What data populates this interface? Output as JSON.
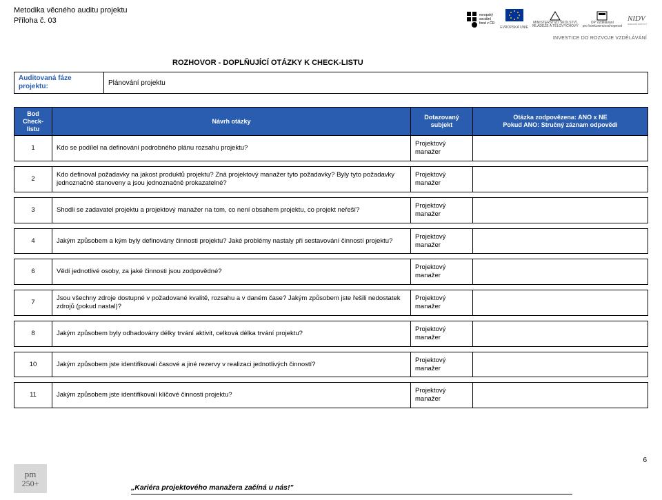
{
  "header": {
    "doc_title_line1": "Metodika věcného auditu projektu",
    "doc_title_line2": "Příloha č. 03",
    "invest_tag": "INVESTICE DO ROZVOJE VZDĚLÁVÁNÍ",
    "logos": [
      {
        "name": "esf",
        "text_top": "evropský",
        "text_mid": "sociální",
        "text_bot": "fond v ČR"
      },
      {
        "name": "eu",
        "text": "EVROPSKÁ UNIE"
      },
      {
        "name": "msmt",
        "text_top": "MINISTERSTVO ŠKOLSTVÍ,",
        "text_bot": "MLÁDEŽE A TĚLOVÝCHOVY"
      },
      {
        "name": "opvk",
        "text_top": "OP Vzdělávání",
        "text_bot": "pro konkurenceschopnost"
      },
      {
        "name": "nidv",
        "text": "NIDV"
      }
    ]
  },
  "section_title": "ROZHOVOR - DOPLŇUJÍCÍ OTÁZKY K CHECK-LISTU",
  "phase": {
    "label": "Auditovaná fáze projektu:",
    "value": "Plánování projektu"
  },
  "columns": {
    "num": "Bod Check-listu",
    "question": "Návrh otázky",
    "subject": "Dotazovaný subjekt",
    "answer": "Otázka zodpovězena: ANO x NE\nPokud ANO: Stručný záznam odpovědi"
  },
  "subject_default": "Projektový manažer",
  "rows": [
    {
      "n": "1",
      "q": "Kdo se podílel na definování podrobného plánu rozsahu projektu?"
    },
    {
      "n": "2",
      "q": "Kdo definoval požadavky na jakost produktů projektu? Zná projektový manažer tyto požadavky? Byly tyto požadavky jednoznačně stanoveny a jsou jednoznačně prokazatelné?"
    },
    {
      "n": "3",
      "q": "Shodli se zadavatel projektu a projektový manažer na tom, co není obsahem projektu, co projekt neřeší?"
    },
    {
      "n": "4",
      "q": "Jakým způsobem a kým byly definovány činnosti projektu? Jaké problémy nastaly při sestavování činností projektu?"
    },
    {
      "n": "6",
      "q": "Vědí jednotlivé osoby, za jaké činnosti jsou zodpovědné?"
    },
    {
      "n": "7",
      "q": "Jsou všechny zdroje dostupné v požadované kvalitě, rozsahu a v daném čase? Jakým způsobem jste řešili nedostatek zdrojů (pokud nastal)?"
    },
    {
      "n": "8",
      "q": "Jakým způsobem byly odhadovány délky trvání aktivit, celková délka trvání projektu?"
    },
    {
      "n": "10",
      "q": "Jakým způsobem jste identifikovali časové a jiné rezervy v realizaci jednotlivých činností?"
    },
    {
      "n": "11",
      "q": "Jakým způsobem jste identifikovali klíčové činnosti projektu?"
    }
  ],
  "footer": {
    "logo_text_top": "pm",
    "logo_text_bot": "250+",
    "slogan": "„Kariéra projektového manažera začíná u nás!\"",
    "page": "6"
  },
  "colors": {
    "header_blue": "#2a5db0",
    "text": "#000000",
    "footer_logo_bg": "#d8d8d8",
    "eu_blue": "#003399",
    "eu_gold": "#ffcc00"
  }
}
